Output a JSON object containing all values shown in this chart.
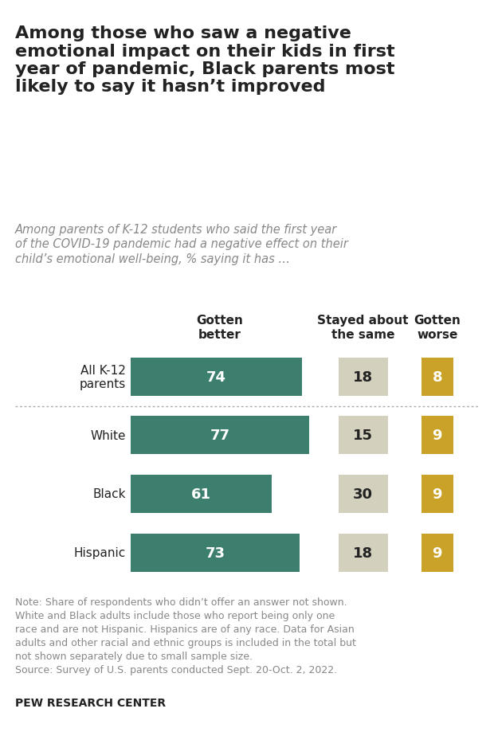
{
  "title": "Among those who saw a negative\nemotional impact on their kids in first\nyear of pandemic, Black parents most\nlikely to say it hasn’t improved",
  "subtitle": "Among parents of K-12 students who said the first year\nof the COVID-19 pandemic had a negative effect on their\nchild’s emotional well-being, % saying it has …",
  "categories": [
    "All K-12\nparents",
    "White",
    "Black",
    "Hispanic"
  ],
  "gotten_better": [
    74,
    77,
    61,
    73
  ],
  "stayed_same": [
    18,
    15,
    30,
    18
  ],
  "gotten_worse": [
    8,
    9,
    9,
    9
  ],
  "col_headers": [
    "Gotten\nbetter",
    "Stayed about\nthe same",
    "Gotten\nworse"
  ],
  "color_better": "#3d7f6e",
  "color_same": "#d4d0be",
  "color_worse": "#c9a227",
  "note_line1": "Note: Share of respondents who didn’t offer an answer not shown.",
  "note_line2": "White and Black adults include those who report being only one",
  "note_line3": "race and are not Hispanic. Hispanics are of any race. Data for Asian",
  "note_line4": "adults and other racial and ethnic groups is included in the total but",
  "note_line5": "not shown separately due to small sample size.",
  "note_line6": "Source: Survey of U.S. parents conducted Sept. 20-Oct. 2, 2022.",
  "source_label": "PEW RESEARCH CENTER",
  "background_color": "#ffffff",
  "text_color": "#222222",
  "note_color": "#888888"
}
